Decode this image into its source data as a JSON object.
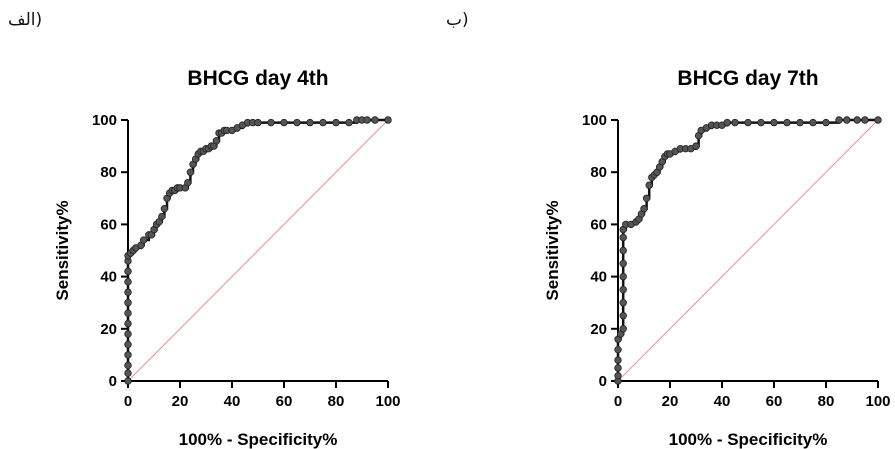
{
  "panel_labels": [
    "(الف",
    "(ب"
  ],
  "chart_data": [
    {
      "type": "line",
      "title": "BHCG day 4th",
      "xlabel": "100% - Specificity%",
      "ylabel": "Sensitivity%",
      "xlim": [
        0,
        100
      ],
      "ylim": [
        0,
        100
      ],
      "xticks": [
        0,
        20,
        40,
        60,
        80,
        100
      ],
      "yticks": [
        0,
        20,
        40,
        60,
        80,
        100
      ],
      "grid": false,
      "curve_color": "#555555",
      "reference_color": "#e89090",
      "reference_line": [
        [
          0,
          0
        ],
        [
          100,
          100
        ]
      ],
      "roc": [
        [
          0,
          0
        ],
        [
          0,
          3
        ],
        [
          0,
          6
        ],
        [
          0,
          10
        ],
        [
          0,
          14
        ],
        [
          0,
          18
        ],
        [
          0,
          22
        ],
        [
          0,
          26
        ],
        [
          0,
          30
        ],
        [
          0,
          34
        ],
        [
          0,
          38
        ],
        [
          0,
          42
        ],
        [
          0,
          46
        ],
        [
          0,
          48
        ],
        [
          1,
          49
        ],
        [
          2,
          50
        ],
        [
          3,
          51
        ],
        [
          5,
          52
        ],
        [
          6,
          54
        ],
        [
          8,
          56
        ],
        [
          9,
          56
        ],
        [
          10,
          58
        ],
        [
          11,
          60
        ],
        [
          12,
          61
        ],
        [
          13,
          63
        ],
        [
          14,
          66
        ],
        [
          15,
          70
        ],
        [
          16,
          72
        ],
        [
          17,
          73
        ],
        [
          18,
          73
        ],
        [
          19,
          74
        ],
        [
          20,
          74
        ],
        [
          22,
          74
        ],
        [
          23,
          76
        ],
        [
          24,
          80
        ],
        [
          25,
          83
        ],
        [
          26,
          85
        ],
        [
          27,
          87
        ],
        [
          28,
          88
        ],
        [
          29,
          88
        ],
        [
          30,
          89
        ],
        [
          31,
          89
        ],
        [
          32,
          90
        ],
        [
          33,
          90
        ],
        [
          34,
          92
        ],
        [
          35,
          95
        ],
        [
          36,
          95
        ],
        [
          37,
          96
        ],
        [
          38,
          96
        ],
        [
          40,
          96
        ],
        [
          42,
          97
        ],
        [
          44,
          98
        ],
        [
          46,
          99
        ],
        [
          48,
          99
        ],
        [
          50,
          99
        ],
        [
          55,
          99
        ],
        [
          60,
          99
        ],
        [
          65,
          99
        ],
        [
          70,
          99
        ],
        [
          75,
          99
        ],
        [
          80,
          99
        ],
        [
          85,
          99
        ],
        [
          88,
          100
        ],
        [
          90,
          100
        ],
        [
          92,
          100
        ],
        [
          95,
          100
        ],
        [
          100,
          100
        ]
      ]
    },
    {
      "type": "line",
      "title": "BHCG day 7th",
      "xlabel": "100% - Specificity%",
      "ylabel": "Sensitivity%",
      "xlim": [
        0,
        100
      ],
      "ylim": [
        0,
        100
      ],
      "xticks": [
        0,
        20,
        40,
        60,
        80,
        100
      ],
      "yticks": [
        0,
        20,
        40,
        60,
        80,
        100
      ],
      "grid": false,
      "curve_color": "#555555",
      "reference_color": "#e89090",
      "reference_line": [
        [
          0,
          0
        ],
        [
          100,
          100
        ]
      ],
      "roc": [
        [
          0,
          0
        ],
        [
          0,
          2
        ],
        [
          0,
          5
        ],
        [
          0,
          8
        ],
        [
          0,
          12
        ],
        [
          0,
          16
        ],
        [
          1,
          18
        ],
        [
          2,
          20
        ],
        [
          2,
          25
        ],
        [
          2,
          30
        ],
        [
          2,
          35
        ],
        [
          2,
          40
        ],
        [
          2,
          45
        ],
        [
          2,
          50
        ],
        [
          2,
          55
        ],
        [
          2,
          58
        ],
        [
          3,
          60
        ],
        [
          5,
          60
        ],
        [
          7,
          61
        ],
        [
          8,
          62
        ],
        [
          9,
          64
        ],
        [
          10,
          66
        ],
        [
          11,
          70
        ],
        [
          12,
          75
        ],
        [
          13,
          78
        ],
        [
          14,
          79
        ],
        [
          15,
          80
        ],
        [
          16,
          82
        ],
        [
          17,
          84
        ],
        [
          18,
          86
        ],
        [
          19,
          87
        ],
        [
          20,
          87
        ],
        [
          22,
          88
        ],
        [
          24,
          89
        ],
        [
          26,
          89
        ],
        [
          28,
          89
        ],
        [
          30,
          90
        ],
        [
          31,
          94
        ],
        [
          32,
          96
        ],
        [
          34,
          97
        ],
        [
          36,
          98
        ],
        [
          38,
          98
        ],
        [
          40,
          98
        ],
        [
          42,
          99
        ],
        [
          45,
          99
        ],
        [
          50,
          99
        ],
        [
          55,
          99
        ],
        [
          60,
          99
        ],
        [
          65,
          99
        ],
        [
          70,
          99
        ],
        [
          75,
          99
        ],
        [
          80,
          99
        ],
        [
          85,
          100
        ],
        [
          88,
          100
        ],
        [
          92,
          100
        ],
        [
          95,
          100
        ],
        [
          100,
          100
        ]
      ]
    }
  ]
}
